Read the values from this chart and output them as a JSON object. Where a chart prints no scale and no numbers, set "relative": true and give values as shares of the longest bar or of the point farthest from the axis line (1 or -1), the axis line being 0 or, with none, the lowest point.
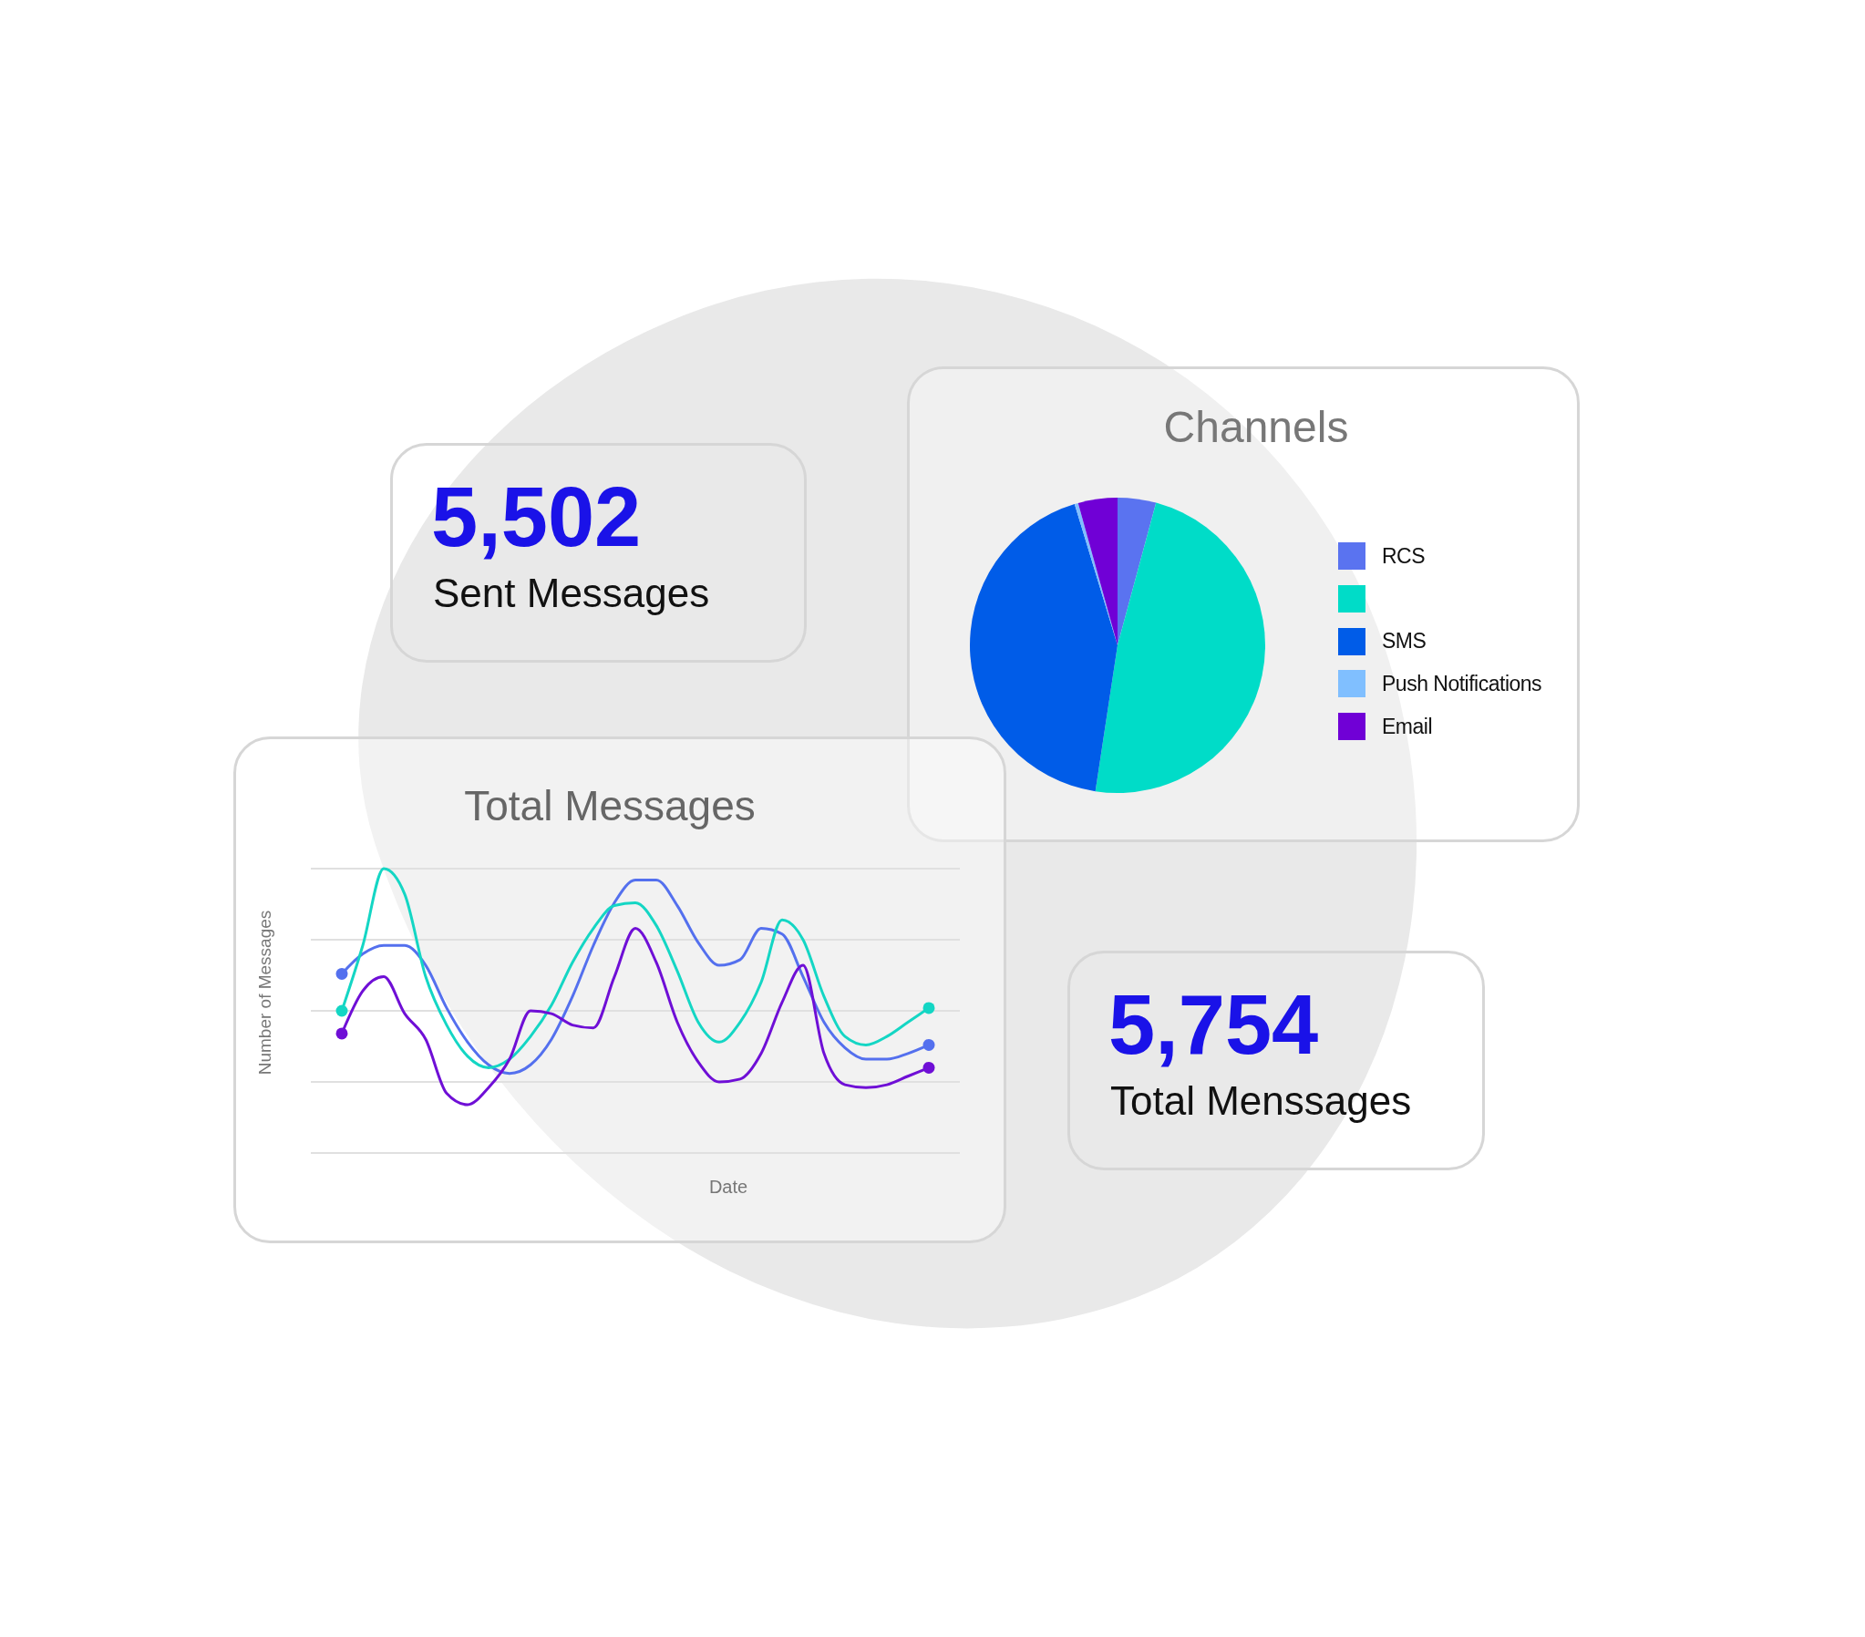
{
  "chart_data": [
    {
      "type": "other",
      "title": "5,502",
      "subtitle": "Sent Messages",
      "color": "#1a12e8"
    },
    {
      "type": "pie",
      "title": "Channels",
      "categories": [
        "RCS",
        null,
        "SMS",
        "Push Notifications",
        "Email"
      ],
      "values": [
        4.2,
        48.2,
        42.9,
        0.4,
        4.3
      ],
      "colors": [
        "#5a73f0",
        "#00dcc8",
        "#005ce8",
        "#80bfff",
        "#7000d6"
      ],
      "legend": "right"
    },
    {
      "type": "line",
      "title": "Total Messages",
      "xlabel": "Date",
      "ylabel": "Number of Messages",
      "relative": true,
      "grid": "y",
      "line_style": "solid",
      "categories": [
        null,
        null,
        null,
        null,
        null,
        null,
        null,
        null,
        null,
        null,
        null,
        null,
        null,
        null,
        null,
        null,
        null,
        null,
        null,
        null,
        null,
        null,
        null,
        null,
        null,
        null,
        null,
        null,
        null
      ],
      "series": [
        {
          "color": "#5470ee",
          "values": [
            0.63,
            0.7,
            0.73,
            0.73,
            0.66,
            0.51,
            0.39,
            0.31,
            0.28,
            0.31,
            0.4,
            0.55,
            0.73,
            0.88,
            0.96,
            0.96,
            0.87,
            0.74,
            0.66,
            0.68,
            0.79,
            0.77,
            0.62,
            0.46,
            0.37,
            0.33,
            0.33,
            0.35,
            0.38
          ]
        },
        {
          "color": "#14d6c4",
          "values": [
            0.5,
            0.73,
            1.0,
            0.91,
            0.62,
            0.45,
            0.34,
            0.3,
            0.33,
            0.41,
            0.52,
            0.67,
            0.79,
            0.87,
            0.88,
            0.8,
            0.64,
            0.46,
            0.39,
            0.46,
            0.6,
            0.82,
            0.75,
            0.55,
            0.41,
            0.38,
            0.41,
            0.46,
            0.51
          ]
        },
        {
          "color": "#6f0fd6",
          "values": [
            0.42,
            0.57,
            0.62,
            0.49,
            0.4,
            0.21,
            0.17,
            0.23,
            0.33,
            0.5,
            0.49,
            0.45,
            0.44,
            0.62,
            0.79,
            0.67,
            0.46,
            0.32,
            0.25,
            0.26,
            0.35,
            0.53,
            0.66,
            0.35,
            0.24,
            0.23,
            0.24,
            0.27,
            0.3
          ]
        }
      ]
    },
    {
      "type": "other",
      "title": "5,754",
      "subtitle": "Total Menssages",
      "color": "#1a12e8"
    }
  ]
}
